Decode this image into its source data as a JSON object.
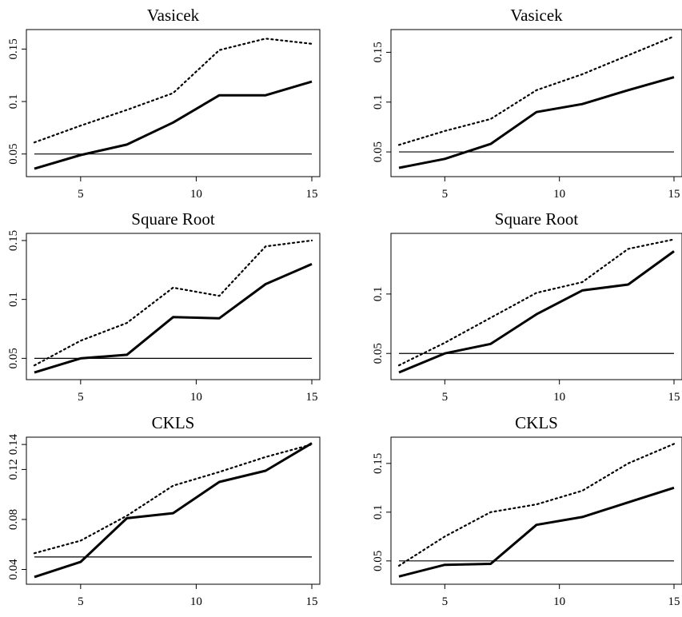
{
  "chart_data": [
    {
      "type": "line",
      "title": "Vasicek",
      "xlim": [
        3,
        15
      ],
      "ylim": [
        0.033,
        0.164
      ],
      "x_ticks": [
        5,
        10,
        15
      ],
      "y_ticks": [
        {
          "v": 0.05,
          "label": "0.05"
        },
        {
          "v": 0.1,
          "label": "0.1"
        },
        {
          "v": 0.15,
          "label": "0.15"
        }
      ],
      "reference_line": 0.05,
      "series": [
        {
          "style": "solid",
          "x": [
            3,
            5,
            7,
            9,
            11,
            13,
            15
          ],
          "values": [
            0.036,
            0.049,
            0.059,
            0.08,
            0.106,
            0.106,
            0.119
          ]
        },
        {
          "style": "dotted",
          "x": [
            3,
            5,
            7,
            9,
            11,
            13,
            15
          ],
          "values": [
            0.061,
            0.077,
            0.092,
            0.108,
            0.149,
            0.16,
            0.155
          ]
        }
      ]
    },
    {
      "type": "line",
      "title": "Vasicek",
      "xlim": [
        3,
        15
      ],
      "ylim": [
        0.03,
        0.168
      ],
      "x_ticks": [
        5,
        10,
        15
      ],
      "y_ticks": [
        {
          "v": 0.05,
          "label": "0.05"
        },
        {
          "v": 0.1,
          "label": "0.1"
        },
        {
          "v": 0.15,
          "label": "0.15"
        }
      ],
      "reference_line": 0.05,
      "series": [
        {
          "style": "solid",
          "x": [
            3,
            5,
            7,
            9,
            11,
            13,
            15
          ],
          "values": [
            0.034,
            0.043,
            0.058,
            0.09,
            0.098,
            0.112,
            0.125
          ]
        },
        {
          "style": "dotted",
          "x": [
            3,
            5,
            7,
            9,
            11,
            13,
            15
          ],
          "values": [
            0.057,
            0.071,
            0.083,
            0.112,
            0.128,
            0.147,
            0.166
          ]
        }
      ]
    },
    {
      "type": "line",
      "title": "Square Root",
      "xlim": [
        3,
        15
      ],
      "ylim": [
        0.036,
        0.152
      ],
      "x_ticks": [
        5,
        10,
        15
      ],
      "y_ticks": [
        {
          "v": 0.05,
          "label": "0.05"
        },
        {
          "v": 0.1,
          "label": "0.1"
        },
        {
          "v": 0.15,
          "label": "0.15"
        }
      ],
      "reference_line": 0.05,
      "series": [
        {
          "style": "solid",
          "x": [
            3,
            5,
            7,
            9,
            11,
            13,
            15
          ],
          "values": [
            0.038,
            0.05,
            0.053,
            0.085,
            0.084,
            0.113,
            0.13
          ]
        },
        {
          "style": "dotted",
          "x": [
            3,
            5,
            7,
            9,
            11,
            13,
            15
          ],
          "values": [
            0.044,
            0.065,
            0.08,
            0.11,
            0.103,
            0.145,
            0.15
          ]
        }
      ]
    },
    {
      "type": "line",
      "title": "Square Root",
      "xlim": [
        3,
        15
      ],
      "ylim": [
        0.032,
        0.147
      ],
      "x_ticks": [
        5,
        10,
        15
      ],
      "y_ticks": [
        {
          "v": 0.05,
          "label": "0.05"
        },
        {
          "v": 0.1,
          "label": "0.1"
        }
      ],
      "reference_line": 0.05,
      "series": [
        {
          "style": "solid",
          "x": [
            3,
            5,
            7,
            9,
            11,
            13,
            15
          ],
          "values": [
            0.034,
            0.05,
            0.058,
            0.083,
            0.103,
            0.108,
            0.136
          ]
        },
        {
          "style": "dotted",
          "x": [
            3,
            5,
            7,
            9,
            11,
            13,
            15
          ],
          "values": [
            0.04,
            0.059,
            0.08,
            0.101,
            0.11,
            0.138,
            0.146
          ]
        }
      ]
    },
    {
      "type": "line",
      "title": "CKLS",
      "xlim": [
        3,
        15
      ],
      "ylim": [
        0.032,
        0.142
      ],
      "x_ticks": [
        5,
        10,
        15
      ],
      "y_ticks": [
        {
          "v": 0.04,
          "label": "0.04"
        },
        {
          "v": 0.08,
          "label": "0.08"
        },
        {
          "v": 0.12,
          "label": "0.12"
        },
        {
          "v": 0.14,
          "label": "0.14"
        }
      ],
      "reference_line": 0.05,
      "series": [
        {
          "style": "solid",
          "x": [
            3,
            5,
            7,
            9,
            11,
            13,
            15
          ],
          "values": [
            0.034,
            0.046,
            0.081,
            0.085,
            0.11,
            0.119,
            0.141
          ]
        },
        {
          "style": "dotted",
          "x": [
            3,
            5,
            7,
            9,
            11,
            13,
            15
          ],
          "values": [
            0.053,
            0.063,
            0.083,
            0.107,
            0.118,
            0.13,
            0.14
          ]
        }
      ]
    },
    {
      "type": "line",
      "title": "CKLS",
      "xlim": [
        3,
        15
      ],
      "ylim": [
        0.031,
        0.172
      ],
      "x_ticks": [
        5,
        10,
        15
      ],
      "y_ticks": [
        {
          "v": 0.05,
          "label": "0.05"
        },
        {
          "v": 0.1,
          "label": "0.1"
        },
        {
          "v": 0.15,
          "label": "0.15"
        }
      ],
      "reference_line": 0.05,
      "series": [
        {
          "style": "solid",
          "x": [
            3,
            5,
            7,
            9,
            11,
            13,
            15
          ],
          "values": [
            0.034,
            0.046,
            0.047,
            0.087,
            0.095,
            0.11,
            0.125
          ]
        },
        {
          "style": "dotted",
          "x": [
            3,
            5,
            7,
            9,
            11,
            13,
            15
          ],
          "values": [
            0.045,
            0.075,
            0.1,
            0.108,
            0.122,
            0.15,
            0.17
          ]
        }
      ]
    }
  ]
}
